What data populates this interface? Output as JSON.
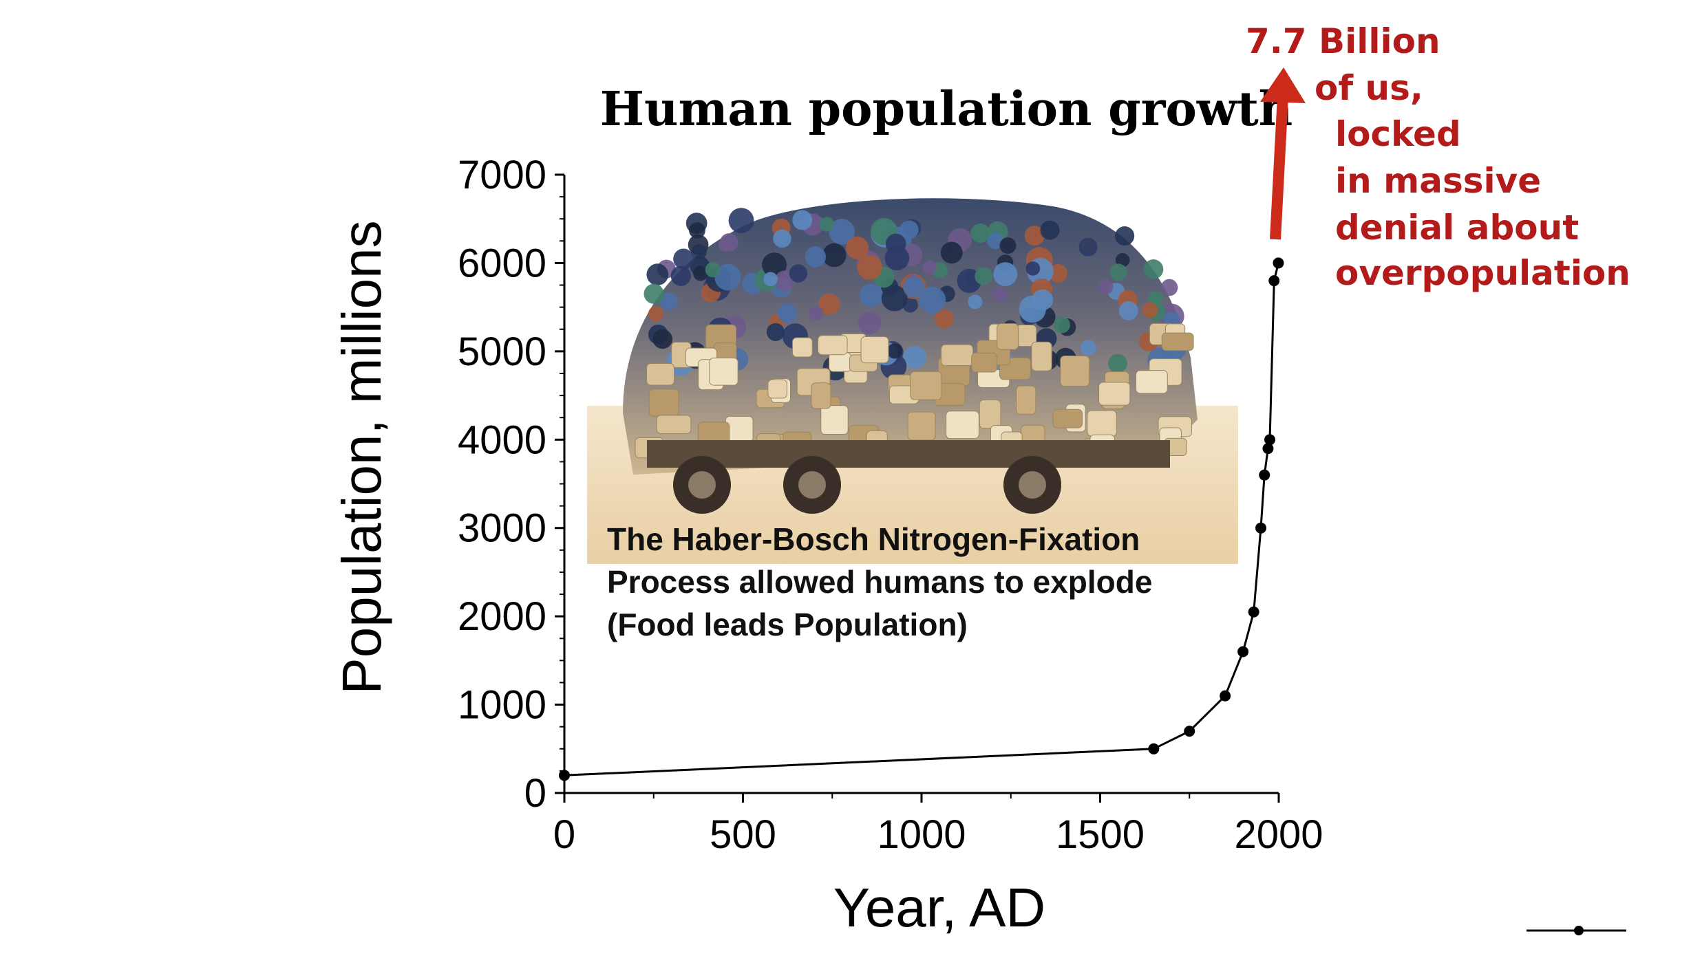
{
  "chart_data": {
    "type": "line",
    "title": "Human population growth",
    "xlabel": "Year, AD",
    "ylabel": "Population, millions",
    "xlim": [
      0,
      2000
    ],
    "ylim": [
      0,
      7000
    ],
    "x_ticks": [
      "0",
      "500",
      "1000",
      "1500",
      "2000"
    ],
    "y_ticks": [
      "0",
      "1000",
      "2000",
      "3000",
      "4000",
      "5000",
      "6000",
      "7000"
    ],
    "grid": false,
    "series": [
      {
        "x": [
          0,
          1650,
          1750,
          1850,
          1900,
          1930,
          1950,
          1960,
          1970,
          1975,
          1987,
          1999
        ],
        "y": [
          200,
          500,
          700,
          1100,
          1600,
          2050,
          3000,
          3600,
          3900,
          4000,
          5800,
          6000
        ]
      }
    ]
  },
  "annotations": {
    "red_lines": [
      "7.7 Billion",
      "of us,",
      "locked",
      "in massive",
      "denial about",
      "overpopulation"
    ],
    "caption_lines": [
      "The Haber-Bosch Nitrogen-Fixation",
      "Process allowed humans to explode",
      "(Food leads Population)"
    ]
  },
  "colors": {
    "arrow": "#cc2a1a",
    "annotation_red": "#b31b1b",
    "image_backdrop": "#f0dcb8"
  }
}
